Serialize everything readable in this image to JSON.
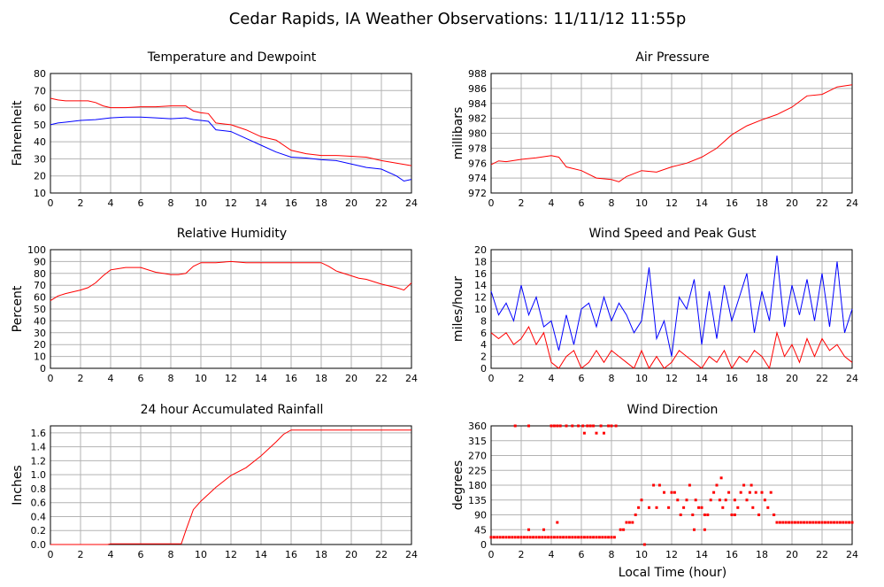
{
  "page_title": "Cedar Rapids, IA Weather Observations: 11/11/12 11:55p",
  "shared_xlabel": "Local Time (hour)",
  "colors": {
    "red": "#ff0000",
    "blue": "#0000ff",
    "grid": "#b3b3b3",
    "frame": "#000000"
  },
  "chart_data": [
    {
      "id": "temp",
      "type": "line",
      "title": "Temperature and Dewpoint",
      "ylabel": "Fahrenheit",
      "xlim": [
        0,
        24
      ],
      "xticks": [
        0,
        2,
        4,
        6,
        8,
        10,
        12,
        14,
        16,
        18,
        20,
        22,
        24
      ],
      "ylim": [
        10,
        80
      ],
      "yticks": [
        10,
        20,
        30,
        40,
        50,
        60,
        70,
        80
      ],
      "series": [
        {
          "color": "#ff0000",
          "x": [
            0,
            0.5,
            1,
            2,
            2.5,
            3,
            3.5,
            4,
            5,
            6,
            7,
            8,
            9,
            9.5,
            10,
            10.5,
            11,
            12,
            13,
            14,
            15,
            16,
            17,
            18,
            19,
            20,
            21,
            22,
            23,
            24
          ],
          "y": [
            65.5,
            64.5,
            64,
            64,
            64,
            63,
            61,
            60,
            60,
            60.5,
            60.5,
            61,
            61,
            58,
            57,
            56.5,
            51,
            50,
            47,
            43,
            41,
            35,
            33,
            32,
            32,
            31.5,
            31,
            29,
            27.5,
            26
          ]
        },
        {
          "color": "#0000ff",
          "x": [
            0,
            0.5,
            1,
            2,
            3,
            4,
            5,
            6,
            7,
            8,
            9,
            9.5,
            10,
            10.5,
            11,
            12,
            13,
            14,
            15,
            16,
            17,
            18,
            19,
            20,
            21,
            22,
            23,
            23.5,
            24
          ],
          "y": [
            50,
            51,
            51.5,
            52.5,
            53,
            54,
            54.5,
            54.5,
            54,
            53.5,
            54,
            53,
            52.5,
            52,
            47,
            46,
            42,
            38,
            34,
            31,
            30.5,
            29.5,
            29,
            27,
            25,
            24,
            20,
            17,
            18
          ]
        }
      ]
    },
    {
      "id": "pressure",
      "type": "line",
      "title": "Air Pressure",
      "ylabel": "millibars",
      "xlim": [
        0,
        24
      ],
      "xticks": [
        0,
        2,
        4,
        6,
        8,
        10,
        12,
        14,
        16,
        18,
        20,
        22,
        24
      ],
      "ylim": [
        972,
        988
      ],
      "yticks": [
        972,
        974,
        976,
        978,
        980,
        982,
        984,
        986,
        988
      ],
      "series": [
        {
          "color": "#ff0000",
          "x": [
            0,
            0.5,
            1,
            2,
            3,
            4,
            4.5,
            5,
            6,
            7,
            8,
            8.5,
            9,
            10,
            11,
            12,
            13,
            14,
            15,
            16,
            17,
            18,
            19,
            20,
            21,
            22,
            23,
            24
          ],
          "y": [
            975.8,
            976.3,
            976.2,
            976.5,
            976.7,
            977,
            976.8,
            975.5,
            975,
            974,
            973.8,
            973.5,
            974.2,
            975,
            974.8,
            975.5,
            976,
            976.8,
            978,
            979.8,
            981,
            981.8,
            982.5,
            983.5,
            985,
            985.2,
            986.2,
            986.5
          ]
        }
      ]
    },
    {
      "id": "humidity",
      "type": "line",
      "title": "Relative Humidity",
      "ylabel": "Percent",
      "xlim": [
        0,
        24
      ],
      "xticks": [
        0,
        2,
        4,
        6,
        8,
        10,
        12,
        14,
        16,
        18,
        20,
        22,
        24
      ],
      "ylim": [
        0,
        100
      ],
      "yticks": [
        0,
        10,
        20,
        30,
        40,
        50,
        60,
        70,
        80,
        90,
        100
      ],
      "series": [
        {
          "color": "#ff0000",
          "x": [
            0,
            0.5,
            1,
            2,
            2.5,
            3,
            3.5,
            4,
            5,
            6,
            7,
            7.5,
            8,
            8.5,
            9,
            9.5,
            10,
            11,
            12,
            13,
            14,
            15,
            16,
            17,
            18,
            18.5,
            19,
            20,
            20.5,
            21,
            22,
            23,
            23.5,
            24
          ],
          "y": [
            57,
            61,
            63,
            66,
            68,
            72,
            78,
            83,
            85,
            85,
            81,
            80,
            79,
            79,
            80,
            86,
            89,
            89,
            90,
            89,
            89,
            89,
            89,
            89,
            89,
            86,
            82,
            78,
            76,
            75,
            71,
            68,
            66,
            72
          ]
        }
      ]
    },
    {
      "id": "wind",
      "type": "line",
      "title": "Wind Speed and Peak Gust",
      "ylabel": "miles/hour",
      "xlim": [
        0,
        24
      ],
      "xticks": [
        0,
        2,
        4,
        6,
        8,
        10,
        12,
        14,
        16,
        18,
        20,
        22,
        24
      ],
      "ylim": [
        0,
        20
      ],
      "yticks": [
        0,
        2,
        4,
        6,
        8,
        10,
        12,
        14,
        16,
        18,
        20
      ],
      "series": [
        {
          "color": "#0000ff",
          "x": [
            0,
            0.5,
            1,
            1.5,
            2,
            2.5,
            3,
            3.5,
            4,
            4.5,
            5,
            5.5,
            6,
            6.5,
            7,
            7.5,
            8,
            8.5,
            9,
            9.5,
            10,
            10.5,
            11,
            11.5,
            12,
            12.5,
            13,
            13.5,
            14,
            14.5,
            15,
            15.5,
            16,
            16.5,
            17,
            17.5,
            18,
            18.5,
            19,
            19.5,
            20,
            20.5,
            21,
            21.5,
            22,
            22.5,
            23,
            23.5,
            24
          ],
          "y": [
            13,
            9,
            11,
            8,
            14,
            9,
            12,
            7,
            8,
            3,
            9,
            4,
            10,
            11,
            7,
            12,
            8,
            11,
            9,
            6,
            8,
            17,
            5,
            8,
            2,
            12,
            10,
            15,
            4,
            13,
            5,
            14,
            8,
            12,
            16,
            6,
            13,
            8,
            19,
            7,
            14,
            9,
            15,
            8,
            16,
            7,
            18,
            6,
            10
          ]
        },
        {
          "color": "#ff0000",
          "x": [
            0,
            0.5,
            1,
            1.5,
            2,
            2.5,
            3,
            3.5,
            4,
            4.5,
            5,
            5.5,
            6,
            6.5,
            7,
            7.5,
            8,
            8.5,
            9,
            9.5,
            10,
            10.5,
            11,
            11.5,
            12,
            12.5,
            13,
            13.5,
            14,
            14.5,
            15,
            15.5,
            16,
            16.5,
            17,
            17.5,
            18,
            18.5,
            19,
            19.5,
            20,
            20.5,
            21,
            21.5,
            22,
            22.5,
            23,
            23.5,
            24
          ],
          "y": [
            6,
            5,
            6,
            4,
            5,
            7,
            4,
            6,
            1,
            0,
            2,
            3,
            0,
            1,
            3,
            1,
            3,
            2,
            1,
            0,
            3,
            0,
            2,
            0,
            1,
            3,
            2,
            1,
            0,
            2,
            1,
            3,
            0,
            2,
            1,
            3,
            2,
            0,
            6,
            2,
            4,
            1,
            5,
            2,
            5,
            3,
            4,
            2,
            1
          ]
        }
      ]
    },
    {
      "id": "rain",
      "type": "line",
      "title": "24 hour Accumulated Rainfall",
      "ylabel": "Inches",
      "xlim": [
        0,
        24
      ],
      "xticks": [
        0,
        2,
        4,
        6,
        8,
        10,
        12,
        14,
        16,
        18,
        20,
        22,
        24
      ],
      "ylim": [
        0,
        1.7
      ],
      "yticks": [
        0,
        0.2,
        0.4,
        0.6,
        0.8,
        1.0,
        1.2,
        1.4,
        1.6
      ],
      "ytick_labels": [
        "0.0",
        "0.2",
        "0.4",
        "0.6",
        "0.8",
        "1.0",
        "1.2",
        "1.4",
        "1.6"
      ],
      "series": [
        {
          "color": "#ff0000",
          "x": [
            0,
            3.8,
            4,
            8.7,
            9,
            9.5,
            10,
            11,
            12,
            13,
            14,
            15,
            15.5,
            16,
            17,
            18,
            19,
            20,
            21,
            22,
            23,
            24
          ],
          "y": [
            0,
            0,
            0.01,
            0.01,
            0.2,
            0.5,
            0.62,
            0.82,
            0.99,
            1.1,
            1.27,
            1.47,
            1.58,
            1.64,
            1.64,
            1.64,
            1.64,
            1.64,
            1.64,
            1.64,
            1.64,
            1.64
          ]
        }
      ]
    },
    {
      "id": "direction",
      "type": "scatter",
      "title": "Wind Direction",
      "ylabel": "degrees",
      "xlabel": "Local Time (hour)",
      "xlim": [
        0,
        24
      ],
      "xticks": [
        0,
        2,
        4,
        6,
        8,
        10,
        12,
        14,
        16,
        18,
        20,
        22,
        24
      ],
      "ylim": [
        0,
        360
      ],
      "yticks": [
        0,
        45,
        90,
        135,
        180,
        225,
        270,
        315,
        360
      ],
      "series": [
        {
          "color": "#ff0000",
          "x": [
            0,
            0.2,
            0.4,
            0.6,
            0.8,
            1,
            1.2,
            1.4,
            1.6,
            1.8,
            2,
            2.2,
            2.4,
            2.6,
            2.8,
            3,
            3.2,
            3.4,
            3.6,
            3.8,
            4,
            4.2,
            4.4,
            4.6,
            4.8,
            5,
            5.2,
            5.4,
            5.6,
            5.8,
            6,
            6.2,
            6.4,
            6.6,
            6.8,
            7,
            7.2,
            7.4,
            7.6,
            7.8,
            8,
            8.2,
            1.6,
            2.5,
            4,
            4.2,
            4.4,
            4.6,
            5,
            5.4,
            5.8,
            6.1,
            6.2,
            6.4,
            6.6,
            6.8,
            7,
            7.3,
            7.5,
            7.8,
            8,
            8.3,
            4.4,
            3.5,
            2.5,
            8.6,
            8.8,
            9,
            9.2,
            9.4,
            9.6,
            9.8,
            10,
            10.2,
            10.5,
            10.8,
            11,
            11.2,
            11.5,
            11.8,
            12,
            12.2,
            12.4,
            12.6,
            12.8,
            13,
            13.2,
            13.4,
            13.6,
            13.8,
            14,
            14.2,
            14.4,
            14.6,
            14.8,
            15,
            15.2,
            15.4,
            15.6,
            15.8,
            16,
            16.2,
            16.4,
            16.6,
            16.8,
            17,
            17.2,
            17.4,
            17.6,
            17.8,
            18,
            18.2,
            18.4,
            18.6,
            18.8,
            19,
            15.3,
            16.2,
            17.3,
            14.2,
            13.5,
            18.8,
            19.2,
            19.4,
            19.6,
            19.8,
            20,
            20.2,
            20.4,
            20.6,
            20.8,
            21,
            21.2,
            21.4,
            21.6,
            21.8,
            22,
            22.2,
            22.4,
            22.6,
            22.8,
            23,
            23.2,
            23.4,
            23.6,
            23.8,
            24
          ],
          "y": [
            22,
            22,
            22,
            22,
            22,
            22,
            22,
            22,
            22,
            22,
            22,
            22,
            22,
            22,
            22,
            22,
            22,
            22,
            22,
            22,
            22,
            22,
            22,
            22,
            22,
            22,
            22,
            22,
            22,
            22,
            22,
            22,
            22,
            22,
            22,
            22,
            22,
            22,
            22,
            22,
            22,
            22,
            360,
            360,
            360,
            360,
            360,
            360,
            360,
            360,
            360,
            360,
            338,
            360,
            360,
            360,
            338,
            360,
            338,
            360,
            360,
            360,
            67,
            45,
            45,
            45,
            45,
            67,
            67,
            67,
            90,
            112,
            135,
            0,
            112,
            180,
            112,
            180,
            158,
            112,
            158,
            158,
            135,
            90,
            112,
            135,
            180,
            90,
            135,
            112,
            112,
            90,
            90,
            135,
            158,
            180,
            135,
            112,
            135,
            158,
            90,
            135,
            112,
            158,
            180,
            135,
            158,
            112,
            158,
            90,
            158,
            135,
            112,
            158,
            90,
            67,
            202,
            90,
            180,
            45,
            45,
            90,
            67,
            67,
            67,
            67,
            67,
            67,
            67,
            67,
            67,
            67,
            67,
            67,
            67,
            67,
            67,
            67,
            67,
            67,
            67,
            67,
            67,
            67,
            67,
            67,
            67
          ]
        }
      ]
    }
  ]
}
